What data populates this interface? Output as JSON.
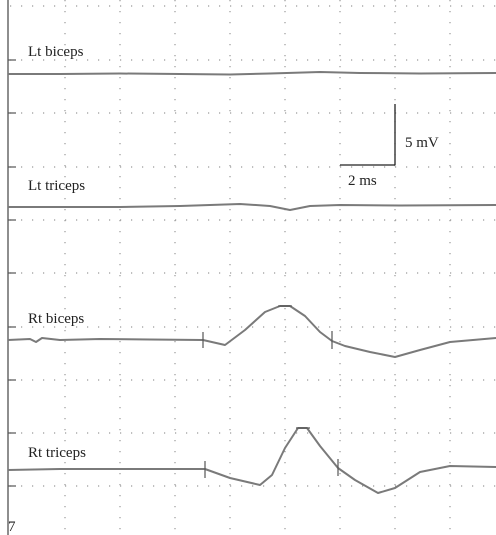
{
  "traces": [
    {
      "label": "Lt biceps"
    },
    {
      "label": "Lt triceps"
    },
    {
      "label": "Rt biceps"
    },
    {
      "label": "Rt triceps"
    }
  ],
  "scale_bar": {
    "vertical": "5 mV",
    "horizontal": "2 ms"
  },
  "corner_label": "7"
}
